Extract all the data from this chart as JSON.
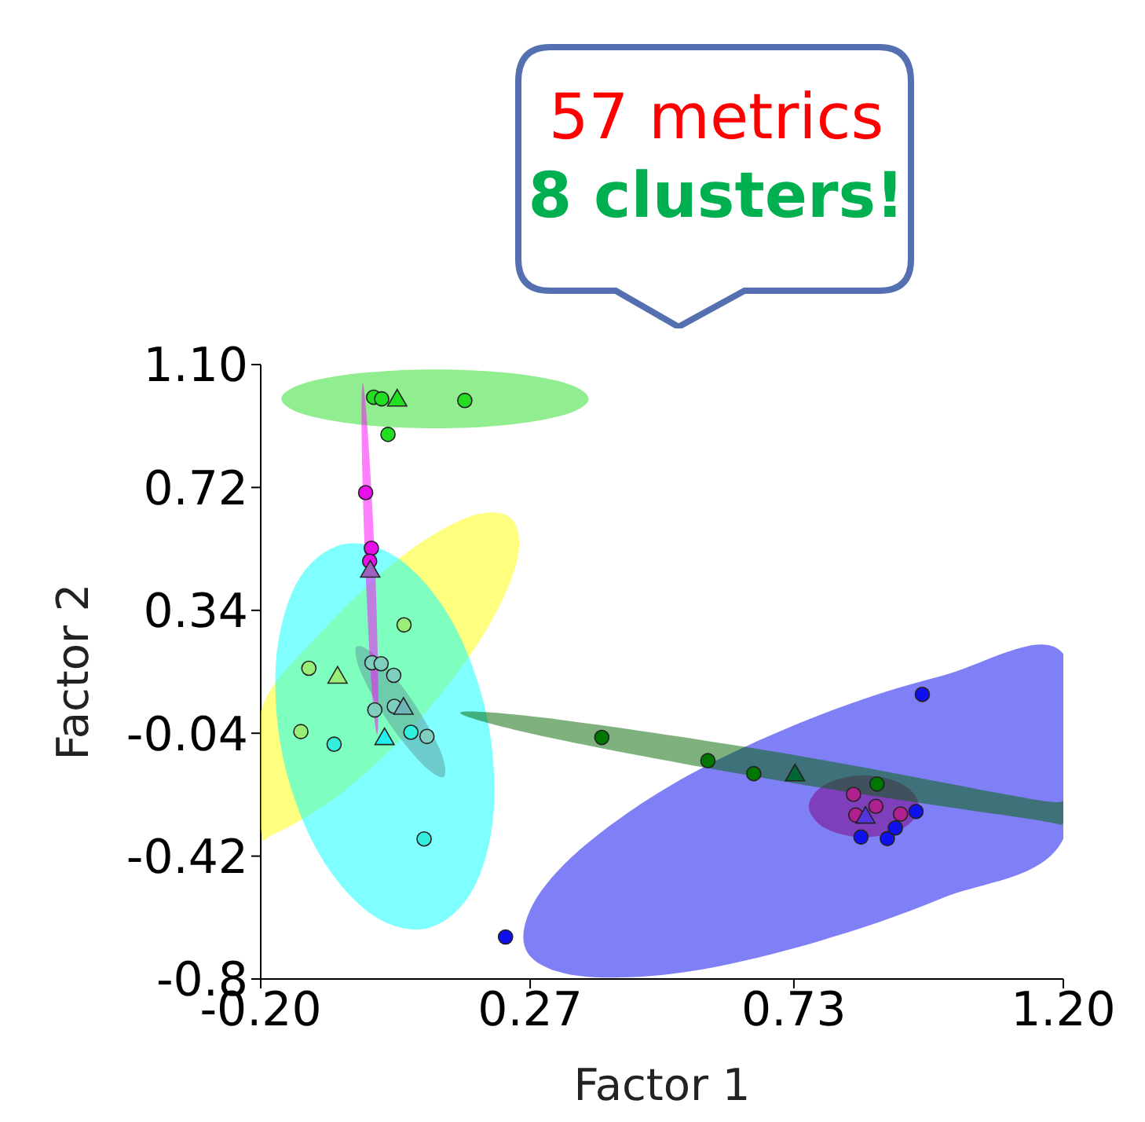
{
  "chart_data": {
    "type": "scatter",
    "xlabel": "Factor 1",
    "ylabel": "Factor 2",
    "annotations": [
      "57 metrics",
      "8 clusters!"
    ],
    "xlim": [
      -0.2,
      1.2
    ],
    "xticks": [
      {
        "value": -0.2,
        "label": "-0.20"
      },
      0.27,
      0.73,
      {
        "value": 1.2,
        "label": "1.20"
      }
    ],
    "ylim": [
      -0.8,
      1.1
    ],
    "yticks": [
      -0.8,
      -0.42,
      -0.04,
      0.34,
      0.72,
      {
        "value": 1.1,
        "label": "1.10"
      }
    ],
    "series": [
      {
        "type": "area",
        "color": "#ffff00",
        "x": [
          0.236,
          0.247,
          0.189,
          0.078,
          -0.056,
          -0.176,
          -0.2,
          -0.2,
          -0.095,
          0.039,
          0.16
        ],
        "values": [
          0.625,
          0.493,
          0.266,
          0.005,
          -0.221,
          -0.351,
          -0.333,
          0.027,
          0.271,
          0.497,
          0.627
        ]
      },
      {
        "type": "area",
        "color": "#00ffff",
        "x": [
          0.089,
          -0.009,
          -0.101,
          -0.161,
          -0.173,
          -0.135,
          -0.056,
          0.042,
          0.134,
          0.194,
          0.206,
          0.168
        ],
        "values": [
          -0.644,
          -0.597,
          -0.404,
          -0.117,
          0.189,
          0.431,
          0.544,
          0.498,
          0.305,
          0.017,
          -0.289,
          -0.53
        ]
      },
      {
        "type": "area",
        "color": "#5a9a9a",
        "x": [
          0.119,
          0.081,
          0.021,
          -0.026,
          -0.032,
          0.007,
          0.067,
          0.114
        ],
        "values": [
          -0.175,
          -0.134,
          -0.001,
          0.151,
          0.229,
          0.189,
          0.054,
          -0.097
        ]
      },
      {
        "type": "area",
        "color": "#22dd22",
        "x": [
          0.372,
          0.336,
          0.238,
          0.104,
          -0.03,
          -0.128,
          -0.164,
          -0.128,
          -0.03,
          0.104,
          0.238,
          0.336
        ],
        "values": [
          0.994,
          1.04,
          1.073,
          1.085,
          1.073,
          1.04,
          0.994,
          0.948,
          0.915,
          0.903,
          0.915,
          0.948
        ]
      },
      {
        "type": "area",
        "color": "#0000ee",
        "x": [
          0.258,
          0.29,
          0.386,
          0.551,
          0.77,
          0.989,
          1.2,
          1.2,
          0.989,
          0.77,
          0.551,
          0.386,
          0.29
        ],
        "values": [
          -0.67,
          -0.526,
          -0.357,
          -0.165,
          0.013,
          0.138,
          0.205,
          -0.367,
          -0.55,
          -0.685,
          -0.776,
          -0.795,
          -0.757
        ]
      },
      {
        "type": "area",
        "color": "#800080",
        "x": [
          0.948,
          0.921,
          0.852,
          0.784,
          0.756,
          0.784,
          0.852,
          0.921
        ],
        "values": [
          -0.266,
          -0.333,
          -0.362,
          -0.333,
          -0.266,
          -0.199,
          -0.17,
          -0.199
        ]
      },
      {
        "type": "area",
        "color": "#006400",
        "x": [
          1.2,
          1.136,
          0.725,
          0.315,
          0.148,
          0.321,
          0.733,
          1.142,
          1.2
        ],
        "values": [
          -0.319,
          -0.304,
          -0.193,
          -0.058,
          0.023,
          0.002,
          -0.108,
          -0.243,
          -0.252
        ]
      },
      {
        "type": "area",
        "color": "#ff00ff",
        "x": [
          0.003,
          -0.007,
          -0.018,
          -0.024,
          -0.022,
          -0.013,
          -0.001,
          0.005
        ],
        "values": [
          -0.045,
          0.114,
          0.499,
          0.884,
          1.042,
          0.884,
          0.499,
          0.114
        ]
      },
      {
        "marker": "circle",
        "color": "#22dd22",
        "x": [
          -0.003,
          0.011,
          0.156,
          0.022
        ],
        "values": [
          0.999,
          0.994,
          0.989,
          0.884
        ]
      },
      {
        "type": "scatter",
        "marker": "triangle",
        "color": "#22dd22",
        "x": [
          0.038
        ],
        "values": [
          0.989
        ]
      },
      {
        "marker": "circle",
        "color": "#e810e8",
        "x": [
          -0.017,
          -0.007,
          -0.01
        ],
        "values": [
          0.704,
          0.532,
          0.492
        ]
      },
      {
        "type": "scatter",
        "marker": "triangle",
        "color": "#a060c0",
        "x": [
          -0.009
        ],
        "values": [
          0.46
        ]
      },
      {
        "type": "scatter",
        "marker": "circle",
        "color": "#99ee77",
        "x": [
          0.05,
          -0.116,
          -0.13
        ],
        "values": [
          0.295,
          0.161,
          -0.035
        ]
      },
      {
        "type": "scatter",
        "marker": "triangle",
        "color": "#99ee77",
        "x": [
          -0.066
        ],
        "values": [
          0.132
        ]
      },
      {
        "type": "scatter",
        "marker": "circle",
        "color": "#7fcfbf",
        "x": [
          -0.006,
          0.01,
          0.032,
          -0.001,
          0.033,
          0.09
        ],
        "values": [
          0.178,
          0.175,
          0.139,
          0.032,
          0.043,
          -0.05
        ]
      },
      {
        "type": "scatter",
        "marker": "triangle",
        "color": "#6fb5b5",
        "x": [
          0.049
        ],
        "values": [
          0.036
        ]
      },
      {
        "type": "scatter",
        "marker": "circle",
        "color": "#33eedd",
        "x": [
          -0.072,
          0.062,
          0.085
        ],
        "values": [
          -0.074,
          -0.037,
          -0.367
        ]
      },
      {
        "type": "scatter",
        "marker": "triangle",
        "color": "#22f0f0",
        "x": [
          0.016
        ],
        "values": [
          -0.058
        ]
      },
      {
        "type": "scatter",
        "marker": "circle",
        "color": "#007700",
        "x": [
          0.395,
          0.58,
          0.66,
          0.875
        ],
        "values": [
          -0.053,
          -0.125,
          -0.165,
          -0.197
        ]
      },
      {
        "type": "scatter",
        "marker": "triangle",
        "color": "#006633",
        "x": [
          0.732
        ],
        "values": [
          -0.17
        ]
      },
      {
        "type": "scatter",
        "marker": "circle",
        "color": "#b0208f",
        "x": [
          0.834,
          0.838,
          0.873,
          0.916
        ],
        "values": [
          -0.229,
          -0.293,
          -0.266,
          -0.29
        ]
      },
      {
        "type": "scatter",
        "marker": "circle",
        "color": "#1010ee",
        "x": [
          0.954,
          0.227,
          0.847,
          0.893,
          0.907,
          0.943
        ],
        "values": [
          0.08,
          -0.67,
          -0.361,
          -0.366,
          -0.333,
          -0.282
        ]
      },
      {
        "type": "scatter",
        "marker": "triangle",
        "color": "#5533dd",
        "x": [
          0.855
        ],
        "values": [
          -0.301
        ]
      }
    ]
  }
}
